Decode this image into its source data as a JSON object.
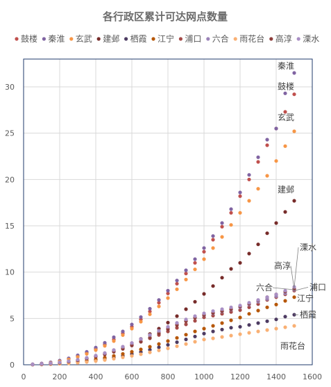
{
  "chart_data": {
    "type": "scatter",
    "title": "各行政区累计可达网点数量",
    "xlabel": "",
    "ylabel": "",
    "xlim": [
      0,
      1600
    ],
    "ylim": [
      0,
      33
    ],
    "x_ticks": [
      0,
      200,
      400,
      600,
      800,
      1000,
      1200,
      1400,
      1600
    ],
    "y_ticks": [
      0,
      5,
      10,
      15,
      20,
      25,
      30
    ],
    "grid": true,
    "legend_position": "top",
    "x": [
      50,
      100,
      150,
      200,
      250,
      300,
      350,
      400,
      450,
      500,
      550,
      600,
      650,
      700,
      750,
      800,
      850,
      900,
      950,
      1000,
      1050,
      1100,
      1150,
      1200,
      1250,
      1300,
      1350,
      1400,
      1450,
      1500
    ],
    "series": [
      {
        "name": "鼓楼",
        "color": "#c0504d",
        "values": [
          0.05,
          0.12,
          0.24,
          0.42,
          0.66,
          0.95,
          1.3,
          1.72,
          2.2,
          2.74,
          3.4,
          4.1,
          4.9,
          5.75,
          6.7,
          7.7,
          8.75,
          9.85,
          11.0,
          12.2,
          13.5,
          14.9,
          16.4,
          18.2,
          20.0,
          21.9,
          23.7,
          25.5,
          27.3,
          29.2
        ]
      },
      {
        "name": "秦淮",
        "color": "#8064a2",
        "values": [
          0.06,
          0.14,
          0.26,
          0.45,
          0.7,
          1.02,
          1.4,
          1.86,
          2.38,
          2.98,
          3.6,
          4.35,
          5.15,
          6.05,
          7.0,
          8.0,
          9.1,
          10.2,
          11.4,
          12.6,
          13.9,
          15.3,
          16.8,
          18.6,
          20.5,
          22.4,
          24.3,
          25.5,
          29.3,
          31.5
        ]
      },
      {
        "name": "玄武",
        "color": "#f79646",
        "values": [
          0.04,
          0.1,
          0.2,
          0.36,
          0.58,
          0.85,
          1.18,
          1.58,
          2.04,
          2.56,
          3.2,
          3.9,
          4.65,
          5.45,
          6.3,
          7.2,
          8.15,
          9.2,
          10.3,
          11.4,
          12.6,
          13.8,
          15.1,
          16.4,
          17.7,
          19.0,
          20.4,
          22.0,
          23.6,
          25.2
        ]
      },
      {
        "name": "建邺",
        "color": "#772c2a",
        "values": [
          0.03,
          0.07,
          0.13,
          0.22,
          0.34,
          0.5,
          0.7,
          0.94,
          1.22,
          1.55,
          1.92,
          2.33,
          2.8,
          3.32,
          3.9,
          4.55,
          5.25,
          6.0,
          6.8,
          7.65,
          8.5,
          9.4,
          10.35,
          11.0,
          12.0,
          13.0,
          14.2,
          15.3,
          16.5,
          17.7
        ]
      },
      {
        "name": "栖霞",
        "color": "#4d3b62",
        "values": [
          0.02,
          0.04,
          0.07,
          0.12,
          0.18,
          0.26,
          0.36,
          0.48,
          0.62,
          0.78,
          0.96,
          1.16,
          1.38,
          1.62,
          1.88,
          2.15,
          2.44,
          2.74,
          3.05,
          3.37,
          3.6,
          3.8,
          4.0,
          4.1,
          4.3,
          4.5,
          4.7,
          4.9,
          5.2,
          5.4
        ]
      },
      {
        "name": "江宁",
        "color": "#b65708",
        "values": [
          0.02,
          0.05,
          0.09,
          0.15,
          0.23,
          0.33,
          0.45,
          0.6,
          0.77,
          0.96,
          1.17,
          1.4,
          1.66,
          1.94,
          2.24,
          2.56,
          2.9,
          3.25,
          3.6,
          3.9,
          4.2,
          4.5,
          4.8,
          5.1,
          5.5,
          5.85,
          6.2,
          6.5,
          6.9,
          7.3
        ]
      },
      {
        "name": "浦口",
        "color": "#a54a47",
        "values": [
          0.03,
          0.07,
          0.13,
          0.22,
          0.34,
          0.5,
          0.7,
          0.94,
          1.2,
          1.5,
          1.82,
          2.15,
          2.5,
          2.86,
          3.22,
          3.6,
          3.98,
          4.36,
          4.74,
          5.12,
          5.3,
          5.5,
          5.7,
          5.9,
          6.2,
          6.55,
          7.0,
          7.3,
          7.6,
          8.0
        ]
      },
      {
        "name": "六合",
        "color": "#9b83b8",
        "values": [
          0.04,
          0.08,
          0.15,
          0.25,
          0.38,
          0.54,
          0.74,
          0.98,
          1.26,
          1.58,
          1.94,
          2.33,
          2.74,
          3.16,
          3.58,
          4.0,
          4.4,
          4.78,
          5.1,
          5.35,
          5.55,
          5.75,
          5.95,
          6.2,
          6.5,
          6.8,
          7.1,
          7.4,
          7.7,
          8.1
        ]
      },
      {
        "name": "雨花台",
        "color": "#f9b074",
        "values": [
          0.01,
          0.03,
          0.06,
          0.1,
          0.15,
          0.22,
          0.3,
          0.4,
          0.52,
          0.65,
          0.8,
          0.96,
          1.14,
          1.34,
          1.55,
          1.77,
          2.0,
          2.24,
          2.48,
          2.72,
          2.85,
          3.0,
          3.15,
          3.3,
          3.45,
          3.6,
          3.75,
          3.9,
          4.05,
          4.2
        ]
      },
      {
        "name": "高淳",
        "color": "#8e3d3a",
        "values": [
          0.03,
          0.07,
          0.13,
          0.22,
          0.34,
          0.49,
          0.67,
          0.88,
          1.12,
          1.4,
          1.72,
          2.08,
          2.48,
          2.92,
          3.38,
          3.84,
          4.28,
          4.7,
          5.08,
          5.38,
          5.6,
          5.8,
          6.0,
          6.3,
          6.6,
          6.95,
          7.3,
          7.6,
          7.9,
          8.2
        ]
      },
      {
        "name": "溧水",
        "color": "#a98fc4",
        "values": [
          0.04,
          0.09,
          0.16,
          0.26,
          0.39,
          0.55,
          0.75,
          0.99,
          1.27,
          1.59,
          1.95,
          2.35,
          2.78,
          3.22,
          3.66,
          4.1,
          4.52,
          4.9,
          5.25,
          5.55,
          5.8,
          6.0,
          6.2,
          6.4,
          6.7,
          7.0,
          7.3,
          7.6,
          8.0,
          8.4
        ]
      }
    ],
    "annotations": [
      {
        "series": "秦淮",
        "text": "秦淮"
      },
      {
        "series": "鼓楼",
        "text": "鼓楼"
      },
      {
        "series": "玄武",
        "text": "玄武"
      },
      {
        "series": "建邺",
        "text": "建邺"
      },
      {
        "series": "溧水",
        "text": "溧水"
      },
      {
        "series": "高淳",
        "text": "高淳"
      },
      {
        "series": "六合",
        "text": "六合"
      },
      {
        "series": "浦口",
        "text": "浦口"
      },
      {
        "series": "江宁",
        "text": "江宁"
      },
      {
        "series": "栖霞",
        "text": "栖霞"
      },
      {
        "series": "雨花台",
        "text": "雨花台"
      }
    ]
  }
}
